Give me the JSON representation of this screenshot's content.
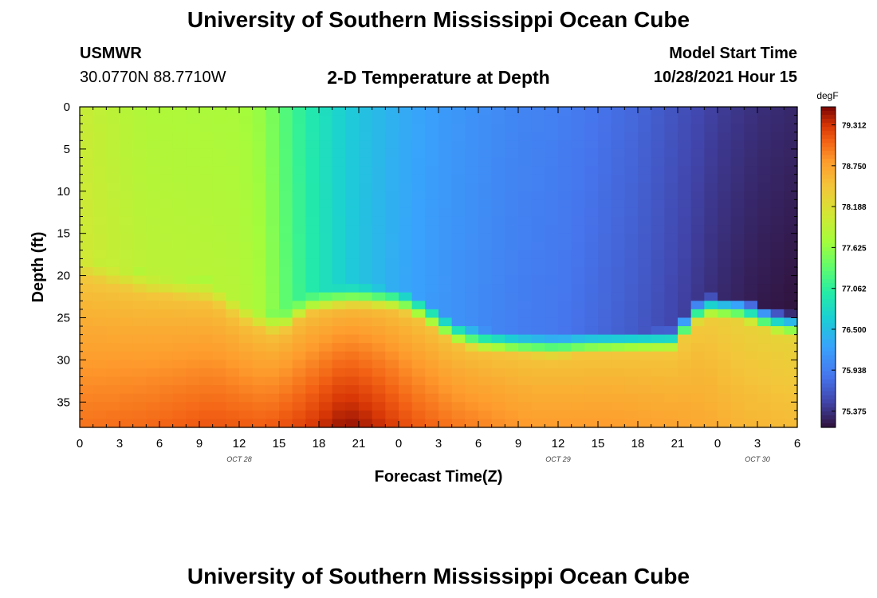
{
  "header": {
    "title": "University of Southern Mississippi Ocean Cube",
    "station": "USMWR",
    "coordinates": "30.0770N  88.7710W",
    "subtitle": "2-D Temperature at Depth",
    "model_start_label": "Model Start Time",
    "model_start_value": "10/28/2021 Hour 15"
  },
  "footer": {
    "title": "University of Southern Mississippi Ocean Cube"
  },
  "chart_data": {
    "type": "heatmap",
    "title": "2-D Temperature at Depth",
    "xlabel": "Forecast Time(Z)",
    "ylabel": "Depth (ft)",
    "x_tick_labels": [
      "0",
      "3",
      "6",
      "9",
      "12",
      "15",
      "18",
      "21",
      "0",
      "3",
      "6",
      "9",
      "12",
      "15",
      "18",
      "21",
      "0",
      "3",
      "6"
    ],
    "date_labels": [
      {
        "label": "OCT 28",
        "at_tick": 4
      },
      {
        "label": "OCT 29",
        "at_tick": 12
      },
      {
        "label": "OCT 30",
        "at_tick": 17
      }
    ],
    "x_hours_range": [
      0,
      54
    ],
    "y_tick_labels": [
      "0",
      "5",
      "10",
      "15",
      "20",
      "25",
      "30",
      "35"
    ],
    "y_ticks": [
      0,
      5,
      10,
      15,
      20,
      25,
      30,
      35
    ],
    "ylim": [
      0,
      38
    ],
    "colorbar": {
      "unit": "degF",
      "tick_labels": [
        "79.312",
        "78.750",
        "78.188",
        "77.625",
        "77.062",
        "76.500",
        "75.938",
        "75.375"
      ],
      "tick_values": [
        79.312,
        78.75,
        78.188,
        77.625,
        77.062,
        76.5,
        75.938,
        75.375
      ],
      "range": [
        75.15,
        79.56
      ]
    },
    "surface_temperature_degF": [
      [
        0,
        78.0
      ],
      [
        2,
        77.9
      ],
      [
        5,
        77.8
      ],
      [
        12,
        77.75
      ],
      [
        14,
        77.6
      ],
      [
        15,
        77.35
      ],
      [
        17,
        77.0
      ],
      [
        19,
        76.75
      ],
      [
        21,
        76.55
      ],
      [
        24,
        76.35
      ],
      [
        27,
        76.2
      ],
      [
        30,
        76.1
      ],
      [
        33,
        76.0
      ],
      [
        36,
        75.95
      ],
      [
        39,
        75.85
      ],
      [
        42,
        75.75
      ],
      [
        45,
        75.6
      ],
      [
        48,
        75.45
      ],
      [
        51,
        75.35
      ],
      [
        54,
        75.3
      ]
    ],
    "mixed_layer_depth_ft": [
      [
        0,
        19
      ],
      [
        5,
        21
      ],
      [
        10,
        22
      ],
      [
        13,
        25
      ],
      [
        15,
        26
      ],
      [
        17,
        23.5
      ],
      [
        19,
        22.8
      ],
      [
        21,
        22.5
      ],
      [
        24,
        23
      ],
      [
        26,
        24.5
      ],
      [
        28,
        26.8
      ],
      [
        30,
        27.8
      ],
      [
        33,
        28.3
      ],
      [
        36,
        28.5
      ],
      [
        38,
        28.2
      ],
      [
        45,
        27.8
      ],
      [
        46,
        24.8
      ],
      [
        47.5,
        23.8
      ],
      [
        50,
        24.2
      ],
      [
        52,
        25.5
      ],
      [
        54,
        26
      ]
    ],
    "bottom_temperature_degF": [
      [
        0,
        79.0
      ],
      [
        5,
        79.05
      ],
      [
        10,
        79.15
      ],
      [
        14,
        79.1
      ],
      [
        17,
        79.25
      ],
      [
        20,
        79.5
      ],
      [
        22,
        79.4
      ],
      [
        25,
        79.15
      ],
      [
        28,
        79.0
      ],
      [
        31,
        78.9
      ],
      [
        34,
        78.8
      ],
      [
        37,
        78.8
      ],
      [
        40,
        78.8
      ],
      [
        44,
        78.75
      ],
      [
        47,
        78.7
      ],
      [
        50,
        78.6
      ],
      [
        54,
        78.55
      ]
    ]
  }
}
